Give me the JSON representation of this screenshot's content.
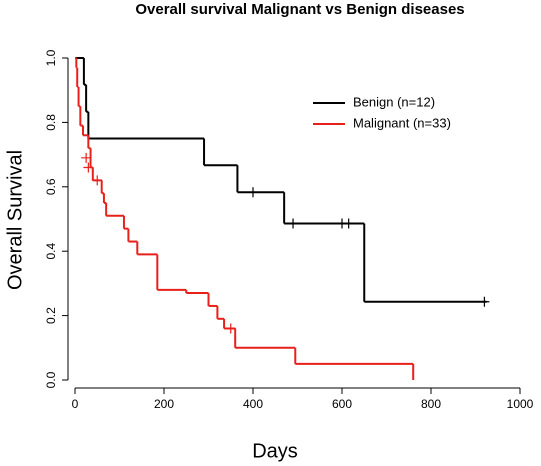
{
  "chart_data": {
    "type": "survival",
    "title": "Overall survival Malignant vs Benign diseases",
    "x_label": "Days",
    "y_label": "Overall Survival",
    "xlim": [
      0,
      1000
    ],
    "ylim": [
      0,
      1
    ],
    "xticks": [
      0,
      200,
      400,
      600,
      800,
      1000
    ],
    "yticks": [
      {
        "value": 0,
        "label": "0.0"
      },
      0.2,
      0.4,
      0.6,
      0.8,
      {
        "value": 1,
        "label": "1.0"
      }
    ],
    "legend_position": "top-right",
    "series": [
      {
        "name": "Benign (n=12)",
        "color": "#000000",
        "x": [
          0,
          20,
          25,
          30,
          290,
          365,
          470,
          650,
          925
        ],
        "values": [
          1.0,
          0.917,
          0.833,
          0.75,
          0.667,
          0.583,
          0.486,
          0.243,
          0.243
        ],
        "censored": {
          "x": [
            400,
            490,
            600,
            615,
            920
          ],
          "values": [
            0.583,
            0.486,
            0.486,
            0.486,
            0.243
          ]
        }
      },
      {
        "name": "Malignant (n=33)",
        "color": "#e8201c",
        "x": [
          0,
          3,
          5,
          8,
          12,
          18,
          30,
          35,
          40,
          60,
          65,
          70,
          110,
          120,
          140,
          185,
          250,
          300,
          320,
          335,
          360,
          495,
          760,
          760
        ],
        "values": [
          1.0,
          0.97,
          0.91,
          0.85,
          0.79,
          0.76,
          0.72,
          0.66,
          0.62,
          0.58,
          0.55,
          0.51,
          0.47,
          0.43,
          0.39,
          0.28,
          0.27,
          0.23,
          0.19,
          0.16,
          0.1,
          0.05,
          0.05,
          0
        ],
        "censored": {
          "x": [
            25,
            30,
            50,
            350
          ],
          "values": [
            0.69,
            0.66,
            0.62,
            0.16
          ]
        }
      }
    ]
  }
}
